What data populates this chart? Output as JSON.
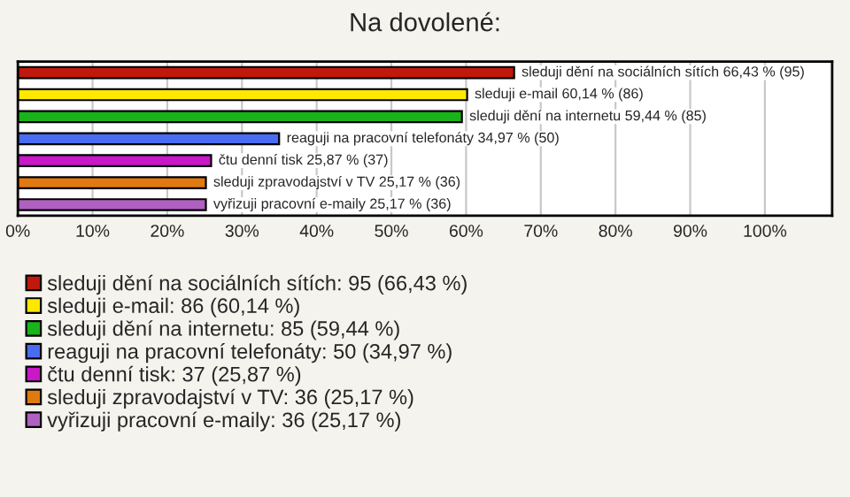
{
  "chart_data": {
    "type": "bar",
    "orientation": "horizontal",
    "title": "Na dovolené:",
    "categories": [
      null,
      null,
      null,
      null,
      null,
      null,
      null
    ],
    "series": [
      {
        "name": "sleduji dění na sociálních sítích: 95 (66,43 %)",
        "color": "#c0180c",
        "values": [
          66.43,
          null,
          null,
          null,
          null,
          null,
          null
        ],
        "value_labels": [
          "sleduji dění na sociálních sítích 66,43 % (95)",
          null,
          null,
          null,
          null,
          null,
          null
        ]
      },
      {
        "name": "sleduji e-mail: 86 (60,14 %)",
        "color": "#ffe800",
        "values": [
          null,
          60.14,
          null,
          null,
          null,
          null,
          null
        ],
        "value_labels": [
          null,
          "sleduji e-mail 60,14 % (86)",
          null,
          null,
          null,
          null,
          null
        ]
      },
      {
        "name": "sleduji dění na internetu: 85 (59,44 %)",
        "color": "#19b419",
        "values": [
          null,
          null,
          59.44,
          null,
          null,
          null,
          null
        ],
        "value_labels": [
          null,
          null,
          "sleduji dění na internetu 59,44 % (85)",
          null,
          null,
          null,
          null
        ]
      },
      {
        "name": "reaguji na pracovní telefonáty: 50 (34,97 %)",
        "color": "#4a6cf0",
        "values": [
          null,
          null,
          null,
          34.97,
          null,
          null,
          null
        ],
        "value_labels": [
          null,
          null,
          null,
          "reaguji na pracovní telefonáty 34,97 % (50)",
          null,
          null,
          null
        ]
      },
      {
        "name": "čtu denní tisk: 37 (25,87 %)",
        "color": "#c818c8",
        "values": [
          null,
          null,
          null,
          null,
          25.87,
          null,
          null
        ],
        "value_labels": [
          null,
          null,
          null,
          null,
          "čtu denní tisk 25,87 % (37)",
          null,
          null
        ]
      },
      {
        "name": "sleduji zpravodajství v TV: 36 (25,17 %)",
        "color": "#e07a10",
        "values": [
          null,
          null,
          null,
          null,
          null,
          25.17,
          null
        ],
        "value_labels": [
          null,
          null,
          null,
          null,
          null,
          "sleduji zpravodajství v TV 25,17 % (36)",
          null
        ]
      },
      {
        "name": "vyřizuji pracovní e-maily: 36 (25,17 %)",
        "color": "#b060c0",
        "values": [
          null,
          null,
          null,
          null,
          null,
          null,
          25.17
        ],
        "value_labels": [
          null,
          null,
          null,
          null,
          null,
          null,
          "vyřizuji pracovní e-maily 25,17 % (36)"
        ]
      }
    ],
    "xlim": [
      0,
      109
    ],
    "xticks": [
      {
        "value": 0,
        "label": "0%"
      },
      {
        "value": 10,
        "label": "10%"
      },
      {
        "value": 20,
        "label": "20%"
      },
      {
        "value": 30,
        "label": "30%"
      },
      {
        "value": 40,
        "label": "40%"
      },
      {
        "value": 50,
        "label": "50%"
      },
      {
        "value": 60,
        "label": "60%"
      },
      {
        "value": 70,
        "label": "70%"
      },
      {
        "value": 80,
        "label": "80%"
      },
      {
        "value": 90,
        "label": "90%"
      },
      {
        "value": 100,
        "label": "100%"
      }
    ],
    "grid": "x",
    "legend": "bottom",
    "tick_labels": "x"
  }
}
